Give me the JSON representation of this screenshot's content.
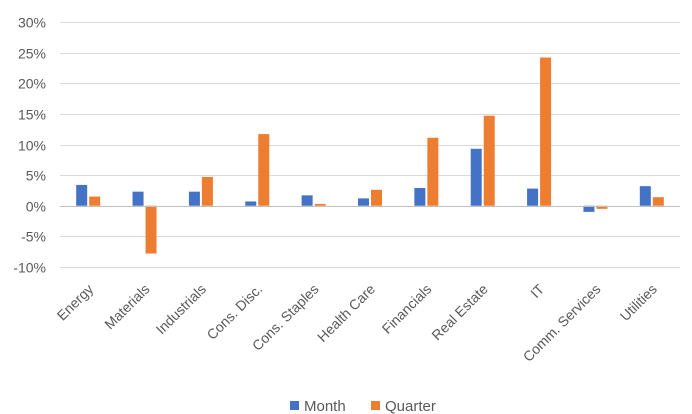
{
  "chart_data": {
    "type": "bar",
    "categories": [
      "Energy",
      "Materials",
      "Industrials",
      "Cons. Disc.",
      "Cons. Staples",
      "Health Care",
      "Financials",
      "Real Estate",
      "IT",
      "Comm. Services",
      "Utilities"
    ],
    "series": [
      {
        "name": "Month",
        "color": "#4472C4",
        "values": [
          3.4,
          2.3,
          2.3,
          0.7,
          1.7,
          1.2,
          2.9,
          9.3,
          2.8,
          -1.0,
          3.2
        ]
      },
      {
        "name": "Quarter",
        "color": "#ED7D31",
        "values": [
          1.5,
          -7.8,
          4.7,
          11.7,
          0.3,
          2.6,
          11.1,
          14.7,
          24.2,
          -0.5,
          1.4
        ]
      }
    ],
    "y_ticks": [
      "30%",
      "25%",
      "20%",
      "15%",
      "10%",
      "5%",
      "0%",
      "-5%",
      "-10%"
    ],
    "ylim": [
      -10,
      30
    ],
    "grid": true,
    "legend_position": "bottom",
    "title": "",
    "xlabel": "",
    "ylabel": ""
  }
}
